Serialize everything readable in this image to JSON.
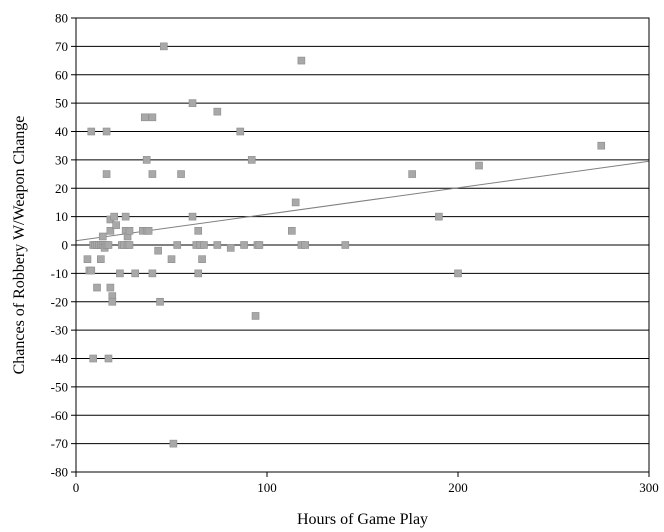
{
  "chart_data": {
    "type": "scatter",
    "title": "",
    "xlabel": "Hours of Game Play",
    "ylabel": "Chances of Robbery W/Weapon Change",
    "xlim": [
      0,
      300
    ],
    "ylim": [
      -80,
      80
    ],
    "x_ticks": [
      0,
      100,
      200,
      300
    ],
    "y_ticks": [
      -80,
      -70,
      -60,
      -50,
      -40,
      -30,
      -20,
      -10,
      0,
      10,
      20,
      30,
      40,
      50,
      60,
      70,
      80
    ],
    "grid": "horizontal",
    "legend": "none",
    "marker_color": "#a8a8a8",
    "trendline": {
      "x": [
        0,
        300
      ],
      "y": [
        1.5,
        29.5
      ],
      "color": "#808080"
    },
    "points": [
      [
        6,
        -5
      ],
      [
        7,
        -9
      ],
      [
        8,
        -9
      ],
      [
        8,
        40
      ],
      [
        9,
        -40
      ],
      [
        9,
        0
      ],
      [
        10,
        0
      ],
      [
        11,
        -15
      ],
      [
        11,
        0
      ],
      [
        12,
        0
      ],
      [
        13,
        -5
      ],
      [
        13,
        0
      ],
      [
        14,
        0
      ],
      [
        14,
        3
      ],
      [
        15,
        0
      ],
      [
        15,
        -1
      ],
      [
        16,
        0
      ],
      [
        16,
        25
      ],
      [
        16,
        40
      ],
      [
        17,
        -40
      ],
      [
        17,
        0
      ],
      [
        18,
        -15
      ],
      [
        18,
        5
      ],
      [
        18,
        9
      ],
      [
        19,
        -18
      ],
      [
        19,
        -20
      ],
      [
        20,
        10
      ],
      [
        21,
        7
      ],
      [
        23,
        -10
      ],
      [
        24,
        0
      ],
      [
        25,
        0
      ],
      [
        26,
        10
      ],
      [
        26,
        5
      ],
      [
        27,
        3
      ],
      [
        27,
        0
      ],
      [
        28,
        5
      ],
      [
        28,
        0
      ],
      [
        31,
        -10
      ],
      [
        35,
        5
      ],
      [
        36,
        45
      ],
      [
        37,
        30
      ],
      [
        37,
        5
      ],
      [
        38,
        5
      ],
      [
        40,
        45
      ],
      [
        40,
        25
      ],
      [
        40,
        -10
      ],
      [
        43,
        -2
      ],
      [
        44,
        -20
      ],
      [
        46,
        70
      ],
      [
        50,
        -5
      ],
      [
        51,
        -70
      ],
      [
        53,
        0
      ],
      [
        55,
        25
      ],
      [
        61,
        50
      ],
      [
        61,
        10
      ],
      [
        63,
        0
      ],
      [
        64,
        5
      ],
      [
        64,
        -10
      ],
      [
        65,
        0
      ],
      [
        66,
        -5
      ],
      [
        67,
        0
      ],
      [
        74,
        47
      ],
      [
        74,
        0
      ],
      [
        81,
        -1
      ],
      [
        86,
        40
      ],
      [
        88,
        0
      ],
      [
        92,
        30
      ],
      [
        94,
        -25
      ],
      [
        95,
        0
      ],
      [
        96,
        0
      ],
      [
        113,
        5
      ],
      [
        115,
        15
      ],
      [
        118,
        65
      ],
      [
        118,
        0
      ],
      [
        120,
        0
      ],
      [
        141,
        0
      ],
      [
        176,
        25
      ],
      [
        190,
        10
      ],
      [
        200,
        -10
      ],
      [
        211,
        28
      ],
      [
        275,
        35
      ]
    ]
  }
}
